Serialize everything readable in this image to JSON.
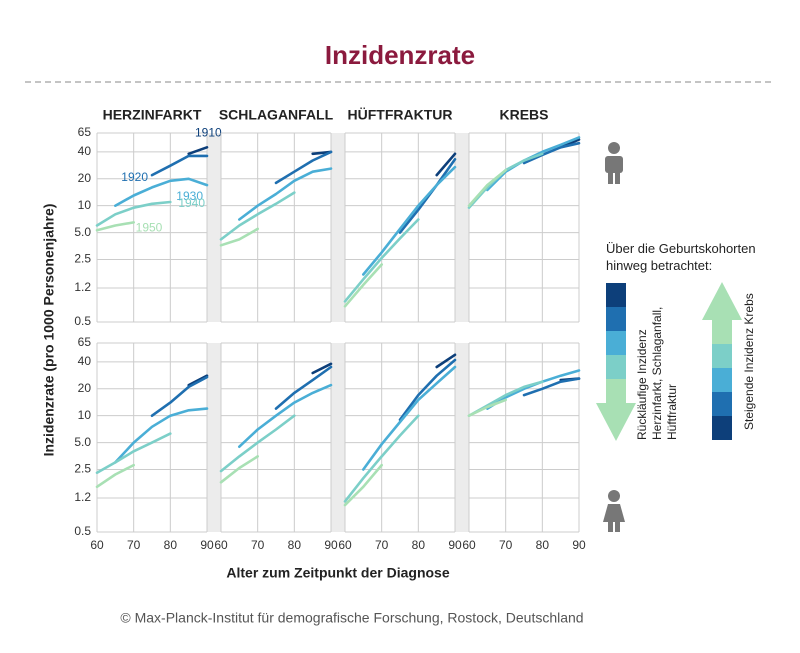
{
  "title": "Inzidenzrate",
  "xlabel": "Alter zum Zeitpunkt der Diagnose",
  "ylabel": "Inzidenzrate (pro 1000 Personenjahre)",
  "footer": "© Max-Planck-Institut für demografische Forschung, Rostock, Deutschland",
  "legend": {
    "note": "Über die Geburtskohorten hinweg betrachtet:",
    "decreasing": [
      "Rückläufige Inzidenz",
      "Herzinfarkt, Schlaganfall,",
      "Hüftfraktur"
    ],
    "increasing": [
      "Steigende Inzidenz Krebs"
    ]
  },
  "chart_data": [
    {
      "type": "line",
      "title": "HERZINFARKT",
      "log_y": true,
      "grid": true,
      "x": [
        60,
        65,
        70,
        75,
        80,
        85,
        90
      ],
      "xlim": [
        60,
        90
      ],
      "xticks": [
        60,
        70,
        80,
        90
      ],
      "ylim": [
        0.5,
        65
      ],
      "yticks": [
        0.5,
        1.2,
        2.5,
        {
          "value": 5,
          "label": "5.0"
        },
        10,
        20,
        40,
        65
      ],
      "series": [
        {
          "name": "1910",
          "color": "#0d3f7a",
          "values": [
            null,
            null,
            null,
            null,
            null,
            38,
            45
          ]
        },
        {
          "name": "1920",
          "color": "#1f6fb0",
          "values": [
            null,
            null,
            null,
            22,
            28,
            36,
            36
          ]
        },
        {
          "name": "1930",
          "color": "#4aaed6",
          "values": [
            null,
            10,
            13,
            16,
            19,
            20,
            17
          ]
        },
        {
          "name": "1940",
          "color": "#7ccfc8",
          "values": [
            6,
            8,
            9.5,
            10.5,
            11,
            null,
            null
          ]
        },
        {
          "name": "1950",
          "color": "#a8e0b4",
          "values": [
            5.3,
            6,
            6.5,
            null,
            null,
            null,
            null
          ]
        }
      ]
    },
    {
      "type": "line",
      "title": "SCHLAGANFALL",
      "log_y": true,
      "grid": true,
      "x": [
        60,
        65,
        70,
        75,
        80,
        85,
        90
      ],
      "xlim": [
        60,
        90
      ],
      "xticks": [
        60,
        70,
        80,
        90
      ],
      "ylim": [
        0.5,
        65
      ],
      "yticks": [
        0.5,
        1.2,
        2.5,
        {
          "value": 5,
          "label": "5.0"
        },
        10,
        20,
        40,
        65
      ],
      "series": [
        {
          "color": "#0d3f7a",
          "values": [
            null,
            null,
            null,
            null,
            null,
            38,
            40
          ]
        },
        {
          "color": "#1f6fb0",
          "values": [
            null,
            null,
            null,
            18,
            24,
            32,
            40
          ]
        },
        {
          "color": "#4aaed6",
          "values": [
            null,
            7,
            10,
            13.5,
            19,
            24,
            26
          ]
        },
        {
          "color": "#7ccfc8",
          "values": [
            4.2,
            6,
            8,
            10.5,
            14,
            null,
            null
          ]
        },
        {
          "color": "#a8e0b4",
          "values": [
            3.6,
            4.2,
            5.5,
            null,
            null,
            null,
            null
          ]
        }
      ]
    },
    {
      "type": "line",
      "title": "HÜFTFRAKTUR",
      "log_y": true,
      "grid": true,
      "x": [
        60,
        65,
        70,
        75,
        80,
        85,
        90
      ],
      "xlim": [
        60,
        90
      ],
      "xticks": [
        60,
        70,
        80,
        90
      ],
      "ylim": [
        0.5,
        65
      ],
      "yticks": [
        0.5,
        1.2,
        2.5,
        {
          "value": 5,
          "label": "5.0"
        },
        10,
        20,
        40,
        65
      ],
      "series": [
        {
          "color": "#0d3f7a",
          "values": [
            null,
            null,
            null,
            null,
            null,
            22,
            38
          ]
        },
        {
          "color": "#1f6fb0",
          "values": [
            null,
            null,
            null,
            5,
            9,
            17,
            33
          ]
        },
        {
          "color": "#4aaed6",
          "values": [
            null,
            1.7,
            3,
            5.5,
            10,
            17,
            27
          ]
        },
        {
          "color": "#7ccfc8",
          "values": [
            0.85,
            1.5,
            2.6,
            4.3,
            7,
            null,
            null
          ]
        },
        {
          "color": "#a8e0b4",
          "values": [
            0.75,
            1.3,
            2.2,
            null,
            null,
            null,
            null
          ]
        }
      ]
    },
    {
      "type": "line",
      "title": "KREBS",
      "log_y": true,
      "grid": true,
      "x": [
        60,
        65,
        70,
        75,
        80,
        85,
        90
      ],
      "xlim": [
        60,
        90
      ],
      "xticks": [
        60,
        70,
        80,
        90
      ],
      "ylim": [
        0.5,
        65
      ],
      "yticks": [
        0.5,
        1.2,
        2.5,
        {
          "value": 5,
          "label": "5.0"
        },
        10,
        20,
        40,
        65
      ],
      "series": [
        {
          "color": "#0d3f7a",
          "values": [
            null,
            null,
            null,
            null,
            null,
            45,
            55
          ]
        },
        {
          "color": "#1f6fb0",
          "values": [
            null,
            null,
            null,
            30,
            37,
            45,
            50
          ]
        },
        {
          "color": "#4aaed6",
          "values": [
            null,
            15,
            24,
            32,
            40,
            48,
            58
          ]
        },
        {
          "color": "#7ccfc8",
          "values": [
            9.5,
            16,
            25,
            32,
            38,
            null,
            null
          ]
        },
        {
          "color": "#a8e0b4",
          "values": [
            10,
            17,
            25,
            null,
            null,
            null,
            null
          ]
        }
      ]
    },
    {
      "type": "line",
      "log_y": true,
      "grid": true,
      "x": [
        60,
        65,
        70,
        75,
        80,
        85,
        90
      ],
      "xlim": [
        60,
        90
      ],
      "xticks": [
        60,
        70,
        80,
        90
      ],
      "ylim": [
        0.5,
        65
      ],
      "yticks": [
        0.5,
        1.2,
        2.5,
        {
          "value": 5,
          "label": "5.0"
        },
        10,
        20,
        40,
        65
      ],
      "series": [
        {
          "color": "#0d3f7a",
          "values": [
            null,
            null,
            null,
            null,
            null,
            22,
            28
          ]
        },
        {
          "color": "#1f6fb0",
          "values": [
            null,
            null,
            null,
            10,
            14,
            21,
            27
          ]
        },
        {
          "color": "#4aaed6",
          "values": [
            null,
            3,
            5,
            7.5,
            10,
            11.5,
            12
          ]
        },
        {
          "color": "#7ccfc8",
          "values": [
            2.3,
            3,
            4,
            5,
            6.3,
            null,
            null
          ]
        },
        {
          "color": "#a8e0b4",
          "values": [
            1.6,
            2.2,
            2.8,
            null,
            null,
            null,
            null
          ]
        }
      ]
    },
    {
      "type": "line",
      "log_y": true,
      "grid": true,
      "x": [
        60,
        65,
        70,
        75,
        80,
        85,
        90
      ],
      "xlim": [
        60,
        90
      ],
      "xticks": [
        60,
        70,
        80,
        90
      ],
      "ylim": [
        0.5,
        65
      ],
      "yticks": [
        0.5,
        1.2,
        2.5,
        {
          "value": 5,
          "label": "5.0"
        },
        10,
        20,
        40,
        65
      ],
      "series": [
        {
          "color": "#0d3f7a",
          "values": [
            null,
            null,
            null,
            null,
            null,
            30,
            38
          ]
        },
        {
          "color": "#1f6fb0",
          "values": [
            null,
            null,
            null,
            12,
            18,
            25,
            35
          ]
        },
        {
          "color": "#4aaed6",
          "values": [
            null,
            4.5,
            7,
            10,
            14,
            18,
            22
          ]
        },
        {
          "color": "#7ccfc8",
          "values": [
            2.4,
            3.5,
            5,
            7,
            10,
            null,
            null
          ]
        },
        {
          "color": "#a8e0b4",
          "values": [
            1.8,
            2.6,
            3.5,
            null,
            null,
            null,
            null
          ]
        }
      ]
    },
    {
      "type": "line",
      "log_y": true,
      "grid": true,
      "x": [
        60,
        65,
        70,
        75,
        80,
        85,
        90
      ],
      "xlim": [
        60,
        90
      ],
      "xticks": [
        60,
        70,
        80,
        90
      ],
      "ylim": [
        0.5,
        65
      ],
      "yticks": [
        0.5,
        1.2,
        2.5,
        {
          "value": 5,
          "label": "5.0"
        },
        10,
        20,
        40,
        65
      ],
      "series": [
        {
          "color": "#0d3f7a",
          "values": [
            null,
            null,
            null,
            null,
            null,
            35,
            48
          ]
        },
        {
          "color": "#1f6fb0",
          "values": [
            null,
            null,
            null,
            9,
            17,
            28,
            42
          ]
        },
        {
          "color": "#4aaed6",
          "values": [
            null,
            2.5,
            4.8,
            8.5,
            15,
            23,
            35
          ]
        },
        {
          "color": "#7ccfc8",
          "values": [
            1.1,
            2,
            3.5,
            6,
            10,
            null,
            null
          ]
        },
        {
          "color": "#a8e0b4",
          "values": [
            1,
            1.6,
            2.8,
            null,
            null,
            null,
            null
          ]
        }
      ]
    },
    {
      "type": "line",
      "log_y": true,
      "grid": true,
      "x": [
        60,
        65,
        70,
        75,
        80,
        85,
        90
      ],
      "xlim": [
        60,
        90
      ],
      "xticks": [
        60,
        70,
        80,
        90
      ],
      "ylim": [
        0.5,
        65
      ],
      "yticks": [
        0.5,
        1.2,
        2.5,
        {
          "value": 5,
          "label": "5.0"
        },
        10,
        20,
        40,
        65
      ],
      "series": [
        {
          "color": "#0d3f7a",
          "values": [
            null,
            null,
            null,
            null,
            null,
            25,
            26
          ]
        },
        {
          "color": "#1f6fb0",
          "values": [
            null,
            null,
            null,
            17,
            20,
            24,
            26
          ]
        },
        {
          "color": "#4aaed6",
          "values": [
            null,
            12,
            16,
            20,
            24,
            28,
            32
          ]
        },
        {
          "color": "#7ccfc8",
          "values": [
            10,
            13,
            17,
            21,
            24,
            null,
            null
          ]
        },
        {
          "color": "#a8e0b4",
          "values": [
            10,
            12.5,
            15,
            null,
            null,
            null,
            null
          ]
        }
      ]
    }
  ]
}
